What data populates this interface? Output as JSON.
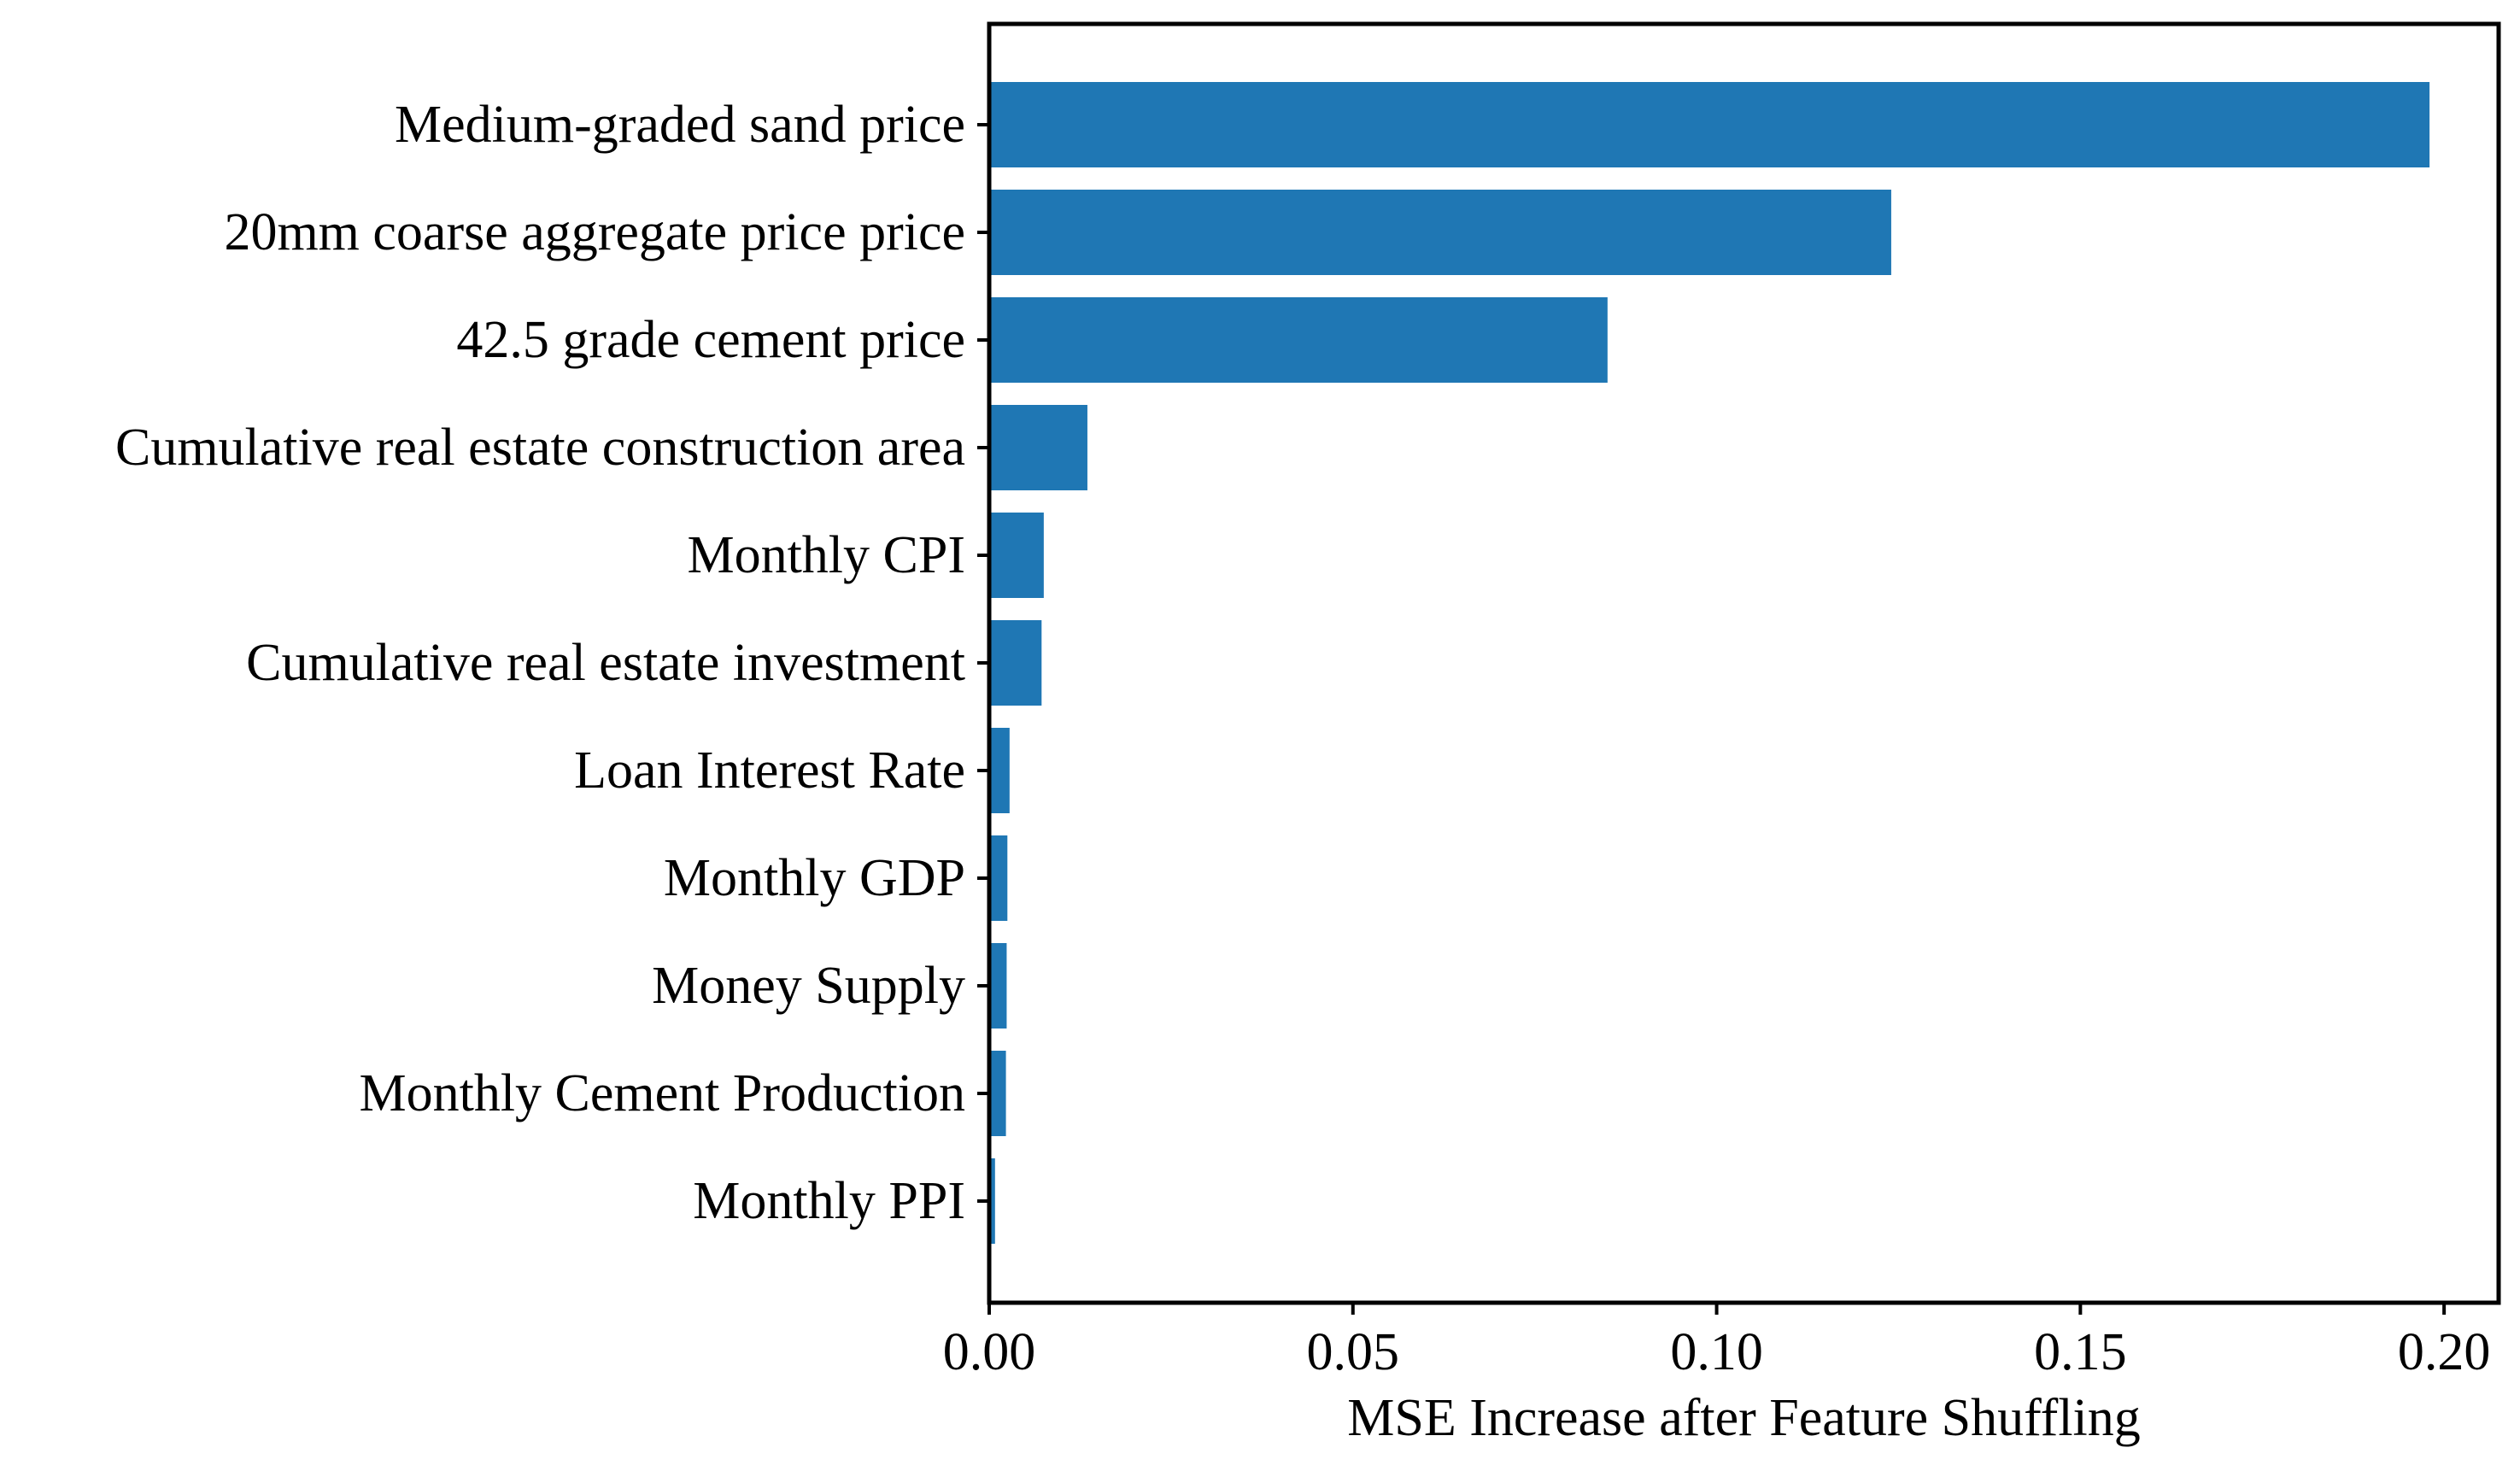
{
  "chart_data": {
    "type": "bar",
    "orientation": "horizontal",
    "categories": [
      "Medium-graded sand price",
      "20mm coarse aggregate price price",
      "42.5 grade cement price",
      "Cumulative real estate construction area",
      "Monthly CPI",
      "Cumulative real estate investment",
      "Loan Interest Rate",
      "Monthly GDP",
      "Money Supply",
      "Monthly Cement Production",
      "Monthly PPI"
    ],
    "values": [
      0.198,
      0.124,
      0.085,
      0.0135,
      0.0075,
      0.0072,
      0.0028,
      0.0025,
      0.0024,
      0.0023,
      0.0008
    ],
    "bar_color": "#1f77b4",
    "title": "",
    "xlabel": "MSE Increase after Feature Shuffling",
    "ylabel": "",
    "xlim": [
      0.0,
      0.2075
    ],
    "xticks": [
      0.0,
      0.05,
      0.1,
      0.15,
      0.2
    ],
    "xtick_labels": [
      "0.00",
      "0.05",
      "0.10",
      "0.15",
      "0.20"
    ],
    "grid": false,
    "legend": "none"
  }
}
